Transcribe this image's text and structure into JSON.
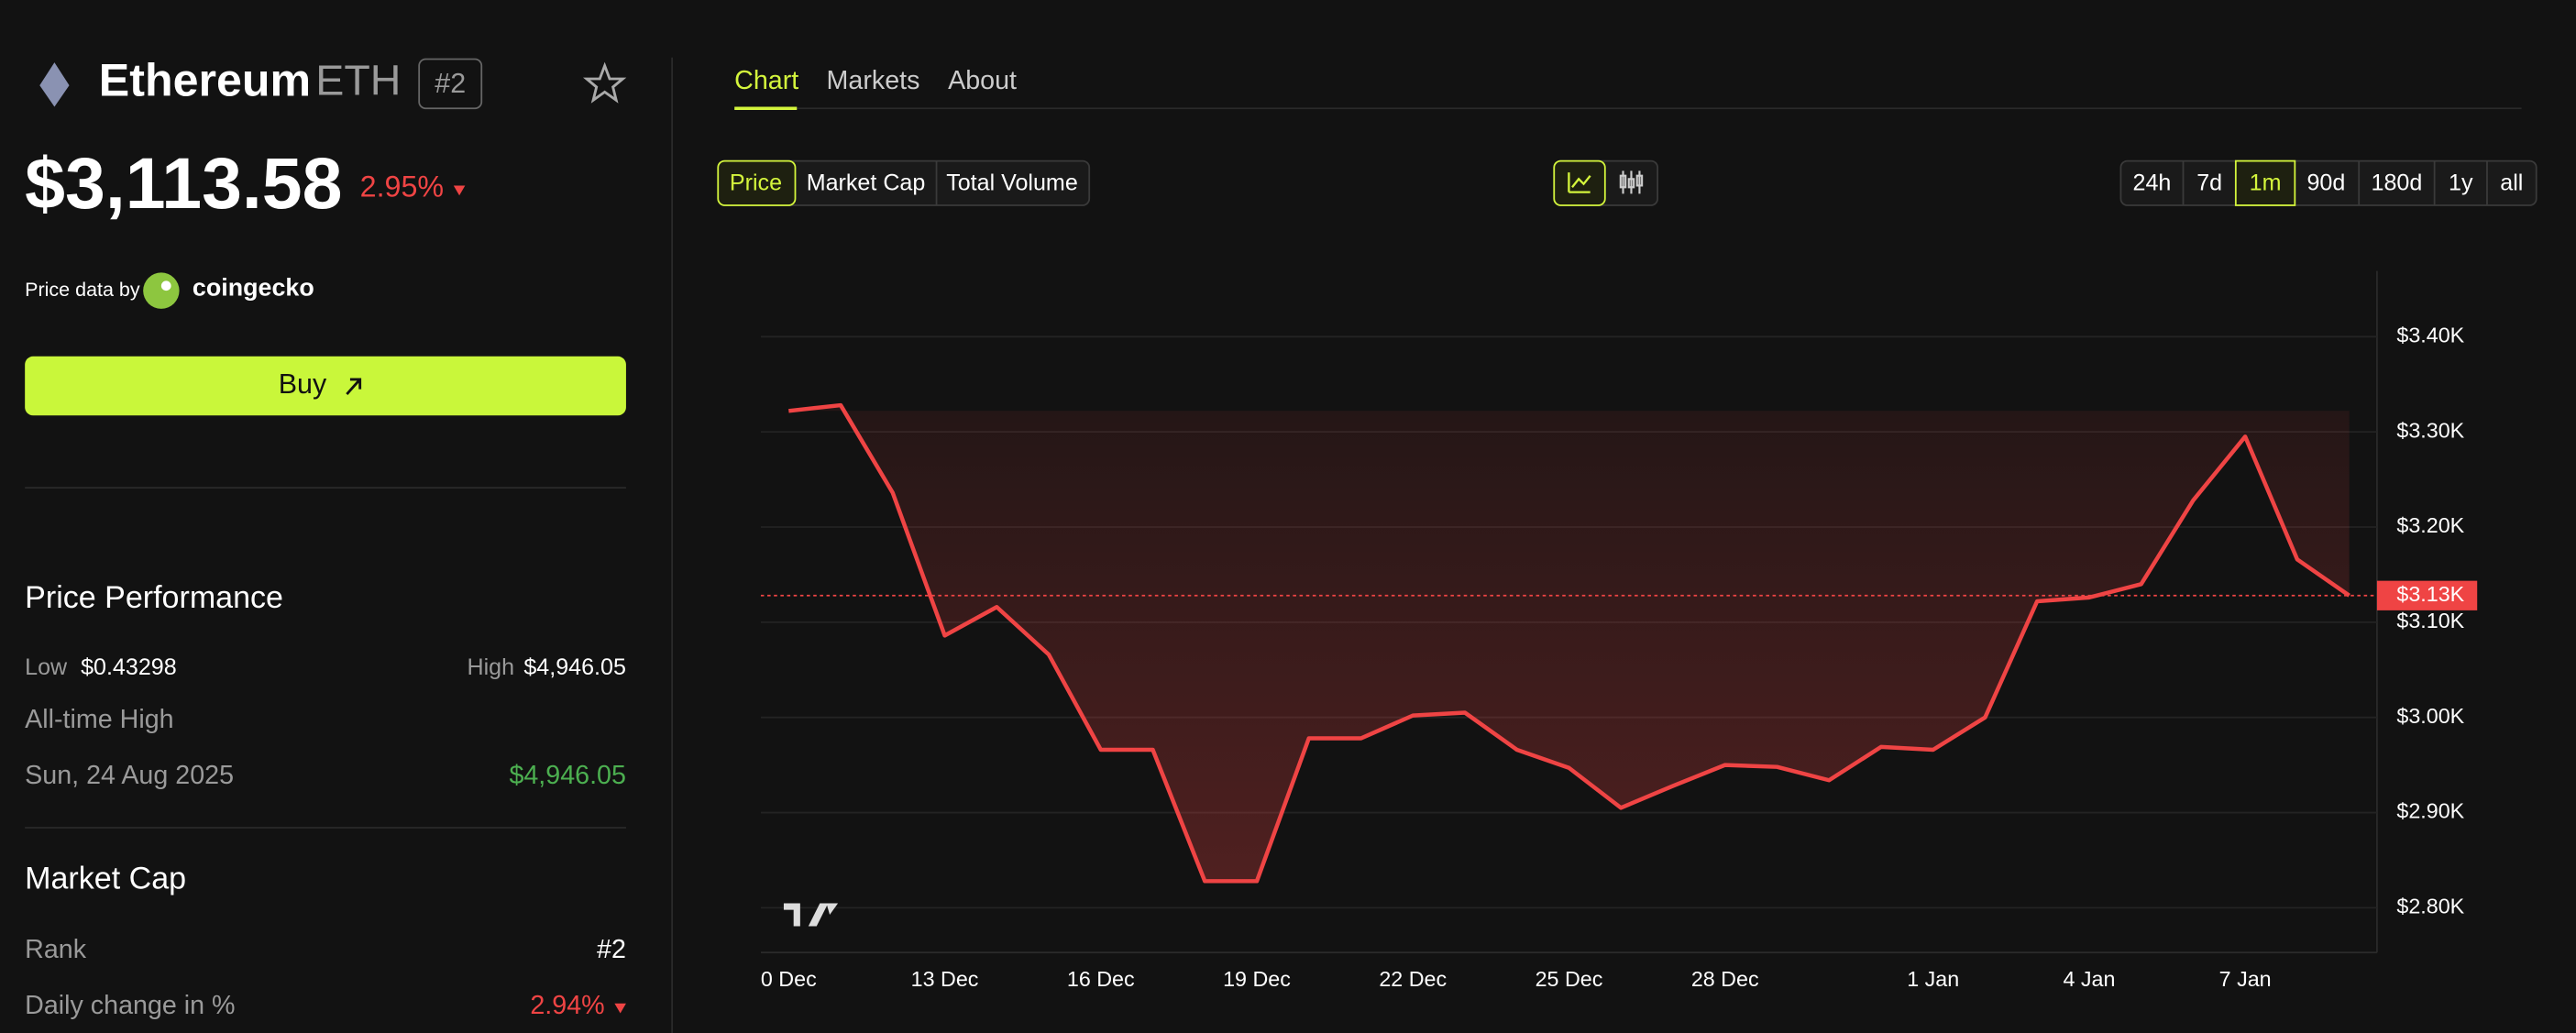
{
  "header": {
    "name": "Ethereum",
    "symbol": "ETH",
    "rank": "#2",
    "price": "$3,113.58",
    "change": "2.95%",
    "source_label": "Price data by",
    "source": "coingecko",
    "buy": "Buy"
  },
  "performance": {
    "title": "Price Performance",
    "low_label": "Low",
    "low": "$0.43298",
    "high_label": "High",
    "high": "$4,946.05",
    "ath_label": "All-time High",
    "ath_date": "Sun, 24 Aug 2025",
    "ath_value": "$4,946.05"
  },
  "market_cap": {
    "title": "Market Cap",
    "rank_label": "Rank",
    "rank": "#2",
    "daily_label": "Daily change in %",
    "daily": "2.94%"
  },
  "tabs": [
    "Chart",
    "Markets",
    "About"
  ],
  "metrics": [
    "Price",
    "Market Cap",
    "Total Volume"
  ],
  "ranges": [
    "24h",
    "7d",
    "1m",
    "90d",
    "180d",
    "1y",
    "all"
  ],
  "chart_data": {
    "type": "line",
    "categories": [
      "0 Dec",
      null,
      null,
      "13 Dec",
      null,
      null,
      "16 Dec",
      null,
      null,
      "19 Dec",
      null,
      null,
      "22 Dec",
      null,
      null,
      "25 Dec",
      null,
      null,
      "28 Dec",
      null,
      null,
      null,
      "1 Jan",
      null,
      null,
      "4 Jan",
      null,
      null,
      "7 Jan",
      null,
      null
    ],
    "series": [
      {
        "name": "Price",
        "color": "#ef4444",
        "values": [
          3322,
          3328,
          3236,
          3086,
          3116,
          3066,
          2966,
          2966,
          2828,
          2828,
          2978,
          2978,
          3002,
          3005,
          2966,
          2947,
          2905,
          2928,
          2950,
          2948,
          2934,
          2969,
          2966,
          3000,
          3122,
          3126,
          3140,
          3228,
          3295,
          3166,
          3128
        ]
      }
    ],
    "ylim": [
      2753,
      3469
    ],
    "yticks": [
      {
        "value": 2800,
        "label": "$2.80K"
      },
      {
        "value": 2900,
        "label": "$2.90K"
      },
      {
        "value": 3000,
        "label": "$3.00K"
      },
      {
        "value": 3100,
        "label": "$3.10K"
      },
      {
        "value": 3200,
        "label": "$3.20K"
      },
      {
        "value": 3300,
        "label": "$3.30K"
      },
      {
        "value": 3400,
        "label": "$3.40K"
      }
    ],
    "last_price_label": "$3.13K",
    "grid": true
  }
}
